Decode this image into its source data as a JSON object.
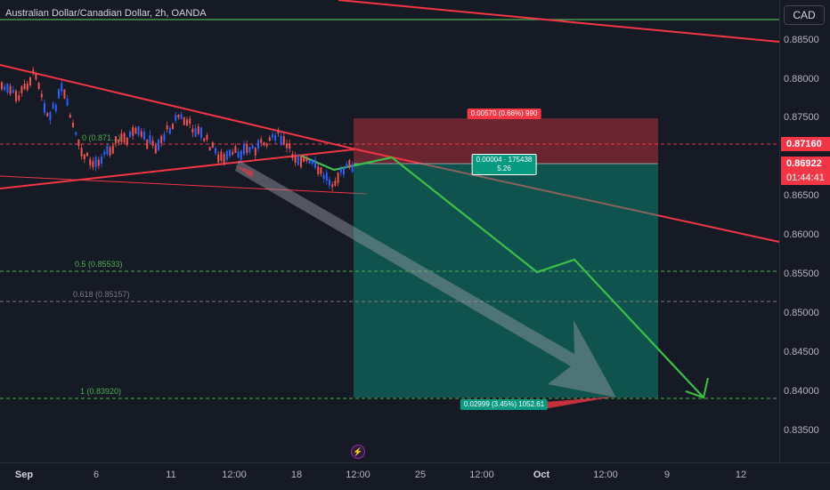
{
  "header": {
    "symbol_title": "Australian Dollar/Canadian Dollar, 2h, OANDA",
    "currency": "CAD"
  },
  "price_axis": {
    "ticks": [
      "0.88500",
      "0.88000",
      "0.87500",
      "0.86500",
      "0.86000",
      "0.85500",
      "0.85000",
      "0.84500",
      "0.84000",
      "0.83500"
    ],
    "target_badge": "0.87160",
    "current_price": "0.86922",
    "countdown": "01:44:41"
  },
  "time_axis": {
    "labels": [
      "Sep",
      "6",
      "11",
      "12:00",
      "18",
      "12:00",
      "25",
      "12:00",
      "Oct",
      "12:00",
      "9",
      "12"
    ]
  },
  "fib_levels": {
    "level_0": "0 (0.871...)",
    "level_05": "0.5 (0.85533)",
    "level_0618": "0.618 (0.85157)",
    "level_1": "1 (0.83920)"
  },
  "position": {
    "stop_label": "0.00570 (0.66%) 990",
    "entry_label_1": "0.00004 · 175438",
    "entry_label_2": "5.26",
    "target_label": "0.02999 (3.45%) 1052.61"
  },
  "colors": {
    "background": "#161a25",
    "bull": "#2962ff",
    "bear": "#ef5350",
    "trend_line": "#f23645",
    "stop_zone": "#f23645",
    "target_zone": "#089981",
    "projection": "#22ab94",
    "level_line": "#4caf50"
  },
  "icons": {
    "event_marker": "lightning-icon"
  }
}
